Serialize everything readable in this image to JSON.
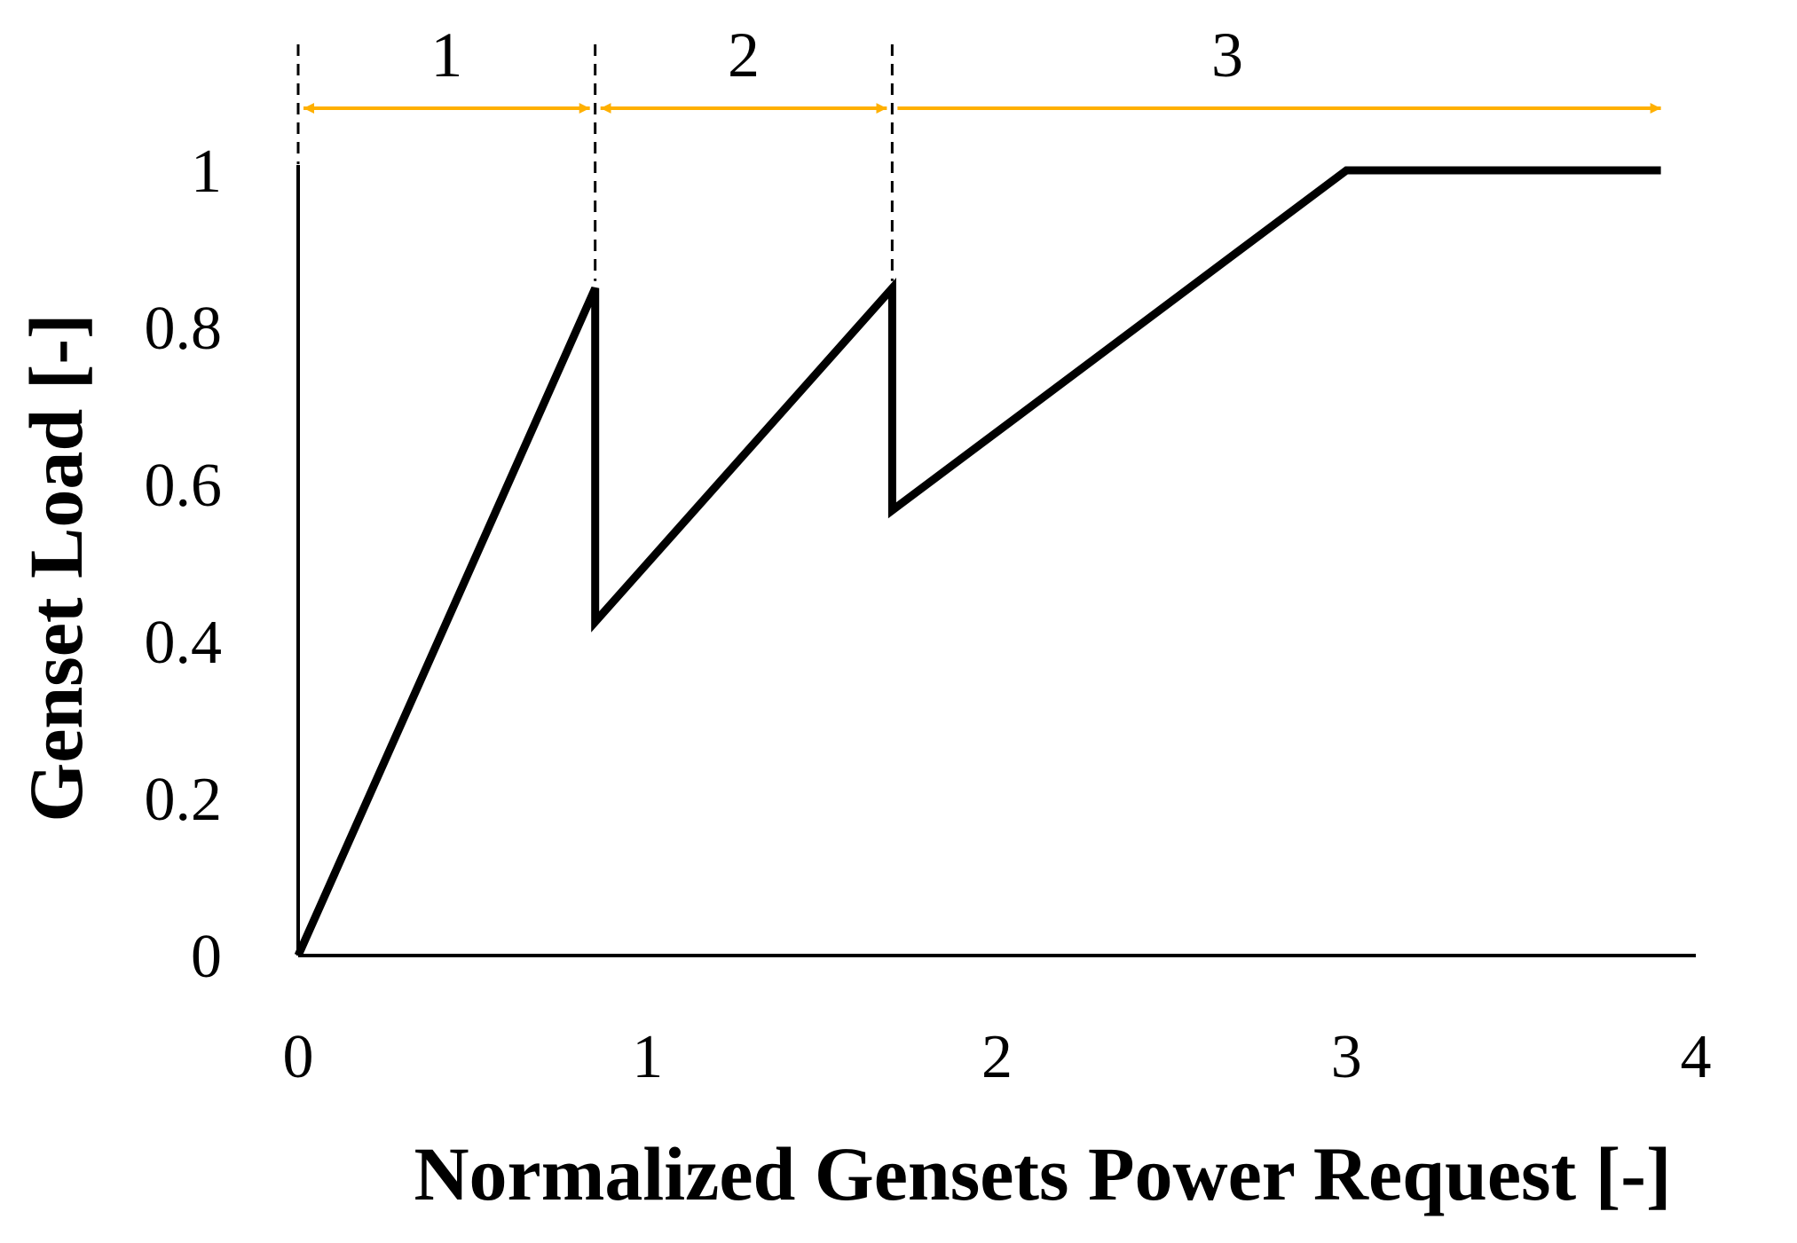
{
  "chart_data": {
    "type": "line",
    "title": "",
    "xlabel": "Normalized Gensets Power Request [-]",
    "ylabel": "Genset Load [-]",
    "xlim": [
      0,
      4
    ],
    "ylim": [
      0,
      1
    ],
    "x_ticks": [
      "0",
      "1",
      "2",
      "3",
      "4"
    ],
    "y_ticks": [
      "0",
      "0.2",
      "0.4",
      "0.6",
      "0.8",
      "1"
    ],
    "x_tick_values": [
      0,
      1,
      2,
      3,
      4
    ],
    "y_tick_values": [
      0,
      0.2,
      0.4,
      0.6,
      0.8,
      1
    ],
    "grid": false,
    "legend": "none",
    "series": [
      {
        "x": [
          0,
          0.85,
          0.85,
          1.7,
          1.7,
          3.0,
          3.9
        ],
        "y": [
          0,
          0.85,
          0.425,
          0.85,
          0.567,
          1.0,
          1.0
        ],
        "color": "#000000"
      }
    ],
    "regions": [
      {
        "label": "1",
        "x_start": 0,
        "x_end": 0.85
      },
      {
        "label": "2",
        "x_start": 0.85,
        "x_end": 1.7
      },
      {
        "label": "3",
        "x_start": 1.7,
        "x_end": 3.9
      }
    ],
    "region_dividers": [
      0.85,
      1.7
    ],
    "arrow_color": "#FFB000"
  }
}
